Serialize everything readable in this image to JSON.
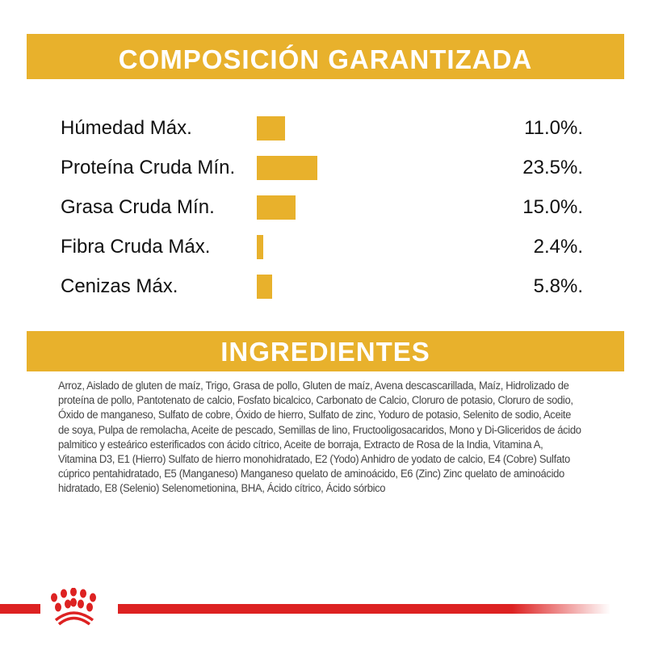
{
  "composition": {
    "title": "COMPOSICIÓN GARANTIZADA",
    "rows": [
      {
        "label": "Húmedad Máx.",
        "value": "11.0%.",
        "percent": 11.0
      },
      {
        "label": "Proteína Cruda Mín.",
        "value": "23.5%.",
        "percent": 23.5
      },
      {
        "label": "Grasa Cruda Mín.",
        "value": "15.0%.",
        "percent": 15.0
      },
      {
        "label": "Fibra Cruda Máx.",
        "value": "2.4%.",
        "percent": 2.4
      },
      {
        "label": "Cenizas Máx.",
        "value": "5.8%.",
        "percent": 5.8
      }
    ]
  },
  "ingredients": {
    "title": "INGREDIENTES",
    "text": "Arroz, Aislado de gluten de maíz, Trigo, Grasa de pollo, Gluten de maíz, Avena descascarillada, Maíz, Hidrolizado de proteína de pollo, Pantotenato de calcio, Fosfato bicalcico, Carbonato de Calcio, Cloruro de potasio, Cloruro de sodio, Óxido de manganeso, Sulfato de cobre, Óxido de hierro, Sulfato de zinc, Yoduro de potasio, Selenito de sodio, Aceite de soya, Pulpa de remolacha, Aceite de pescado, Semillas de lino, Fructooligosacaridos, Mono y Di-Gliceridos de ácido palmitico y esteárico esterificados con ácido cítrico, Aceite de borraja, Extracto de Rosa de la India, Vitamina A, Vitamina D3, E1 (Hierro) Sulfato de hierro monohidratado, E2 (Yodo) Anhidro de yodato de calcio, E4 (Cobre) Sulfato cúprico pentahidratado, E5 (Manganeso) Manganeso quelato de aminoácido, E6 (Zinc) Zinc quelato de aminoácido hidratado, E8 (Selenio) Selenometionina, BHA, Ácido cítrico, Ácido sórbico"
  },
  "colors": {
    "accent": "#e8b12c",
    "brand_red": "#dd2222"
  },
  "logo": {
    "icon": "royal-canin-crown-icon"
  }
}
